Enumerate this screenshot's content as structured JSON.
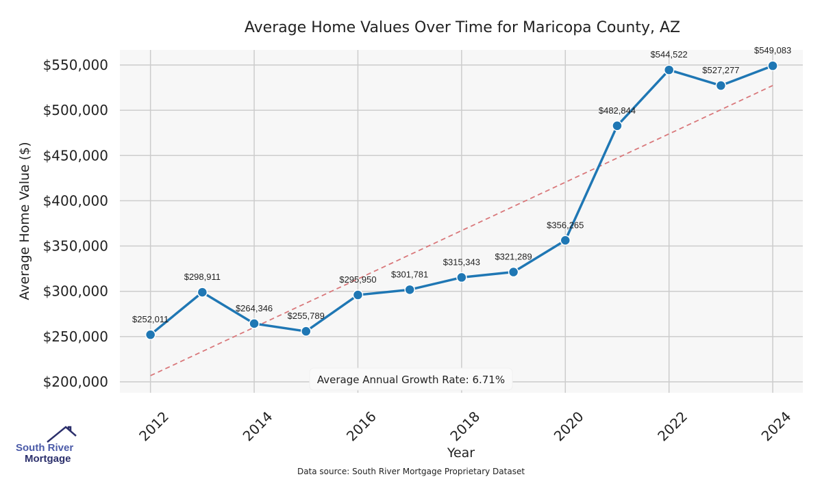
{
  "chart_data": {
    "type": "line",
    "title": "Average Home Values Over Time for Maricopa County, AZ",
    "xlabel": "Year",
    "ylabel": "Average Home Value ($)",
    "x": [
      2012,
      2013,
      2014,
      2015,
      2016,
      2017,
      2018,
      2019,
      2020,
      2021,
      2022,
      2023,
      2024
    ],
    "series": [
      {
        "name": "Average Home Value",
        "values": [
          252011,
          298911,
          264346,
          255789,
          295950,
          301781,
          315343,
          321289,
          356265,
          482844,
          544522,
          527277,
          549083
        ],
        "color": "#1f77b4"
      }
    ],
    "data_labels": [
      "$252,011",
      "$298,911",
      "$264,346",
      "$255,789",
      "$295,950",
      "$301,781",
      "$315,343",
      "$321,289",
      "$356,265",
      "$482,844",
      "$544,522",
      "$527,277",
      "$549,083"
    ],
    "trendline": {
      "name": "Trend",
      "x": [
        2012,
        2024
      ],
      "y": [
        206800,
        527300
      ],
      "color": "#d9777a",
      "style": "dashed"
    },
    "xticks": [
      2012,
      2014,
      2016,
      2018,
      2020,
      2022,
      2024
    ],
    "xtick_labels": [
      "2012",
      "2014",
      "2016",
      "2018",
      "2020",
      "2022",
      "2024"
    ],
    "yticks": [
      200000,
      250000,
      300000,
      350000,
      400000,
      450000,
      500000,
      550000
    ],
    "ytick_labels": [
      "$200,000",
      "$250,000",
      "$300,000",
      "$350,000",
      "$400,000",
      "$450,000",
      "$500,000",
      "$550,000"
    ],
    "xlim": [
      2011.41,
      2024.58
    ],
    "ylim": [
      187900,
      566600
    ],
    "grid": true,
    "annotation": "Average Annual Growth Rate: 6.71%",
    "source": "Data source: South River Mortgage Proprietary Dataset"
  },
  "logo": {
    "line1": "South River",
    "line2": "Mortgage"
  }
}
